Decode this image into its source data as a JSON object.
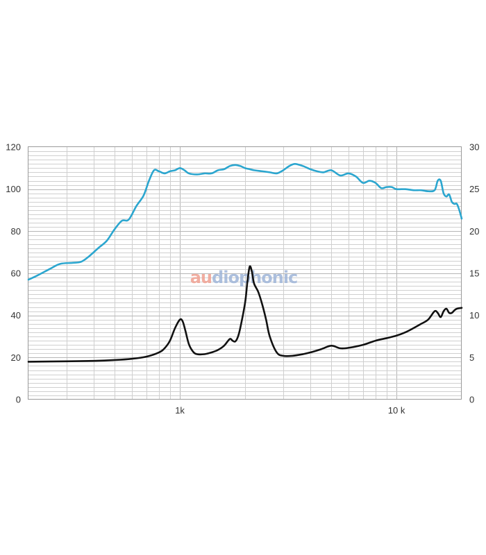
{
  "watermark": {
    "text": "audiophonic"
  },
  "chart_data": {
    "type": "line",
    "x_scale": "log",
    "xlim": [
      200,
      20000
    ],
    "x_tick_values": [
      1000,
      10000
    ],
    "x_tick_labels": [
      "1k",
      "10 k"
    ],
    "ylim": [
      0,
      120
    ],
    "y_ticks": [
      0,
      20,
      40,
      60,
      80,
      100,
      120
    ],
    "y_tick_labels": [
      "0",
      "20",
      "40",
      "60",
      "80",
      "100",
      "120"
    ],
    "y2lim": [
      0,
      30
    ],
    "y2_ticks": [
      0,
      5,
      10,
      15,
      20,
      25,
      30
    ],
    "y2_tick_labels": [
      "0",
      "5",
      "10",
      "15",
      "20",
      "25",
      "30"
    ],
    "grid": true,
    "legend": "none",
    "series": [
      {
        "axis": "left",
        "color": "#2ba6cf",
        "x": [
          200,
          220,
          250,
          280,
          320,
          350,
          380,
          420,
          460,
          500,
          540,
          580,
          630,
          680,
          720,
          760,
          800,
          850,
          900,
          950,
          1000,
          1050,
          1100,
          1200,
          1300,
          1400,
          1500,
          1600,
          1700,
          1800,
          1900,
          2000,
          2100,
          2200,
          2400,
          2600,
          2800,
          3000,
          3200,
          3400,
          3700,
          4000,
          4300,
          4600,
          5000,
          5500,
          6000,
          6500,
          7000,
          7500,
          8000,
          8500,
          9000,
          9500,
          10000,
          11000,
          12000,
          13000,
          14000,
          15000,
          15500,
          16000,
          16500,
          17000,
          17500,
          18000,
          18500,
          19000,
          19500,
          20000
        ],
        "y": [
          57,
          59,
          62,
          64.5,
          65,
          65.5,
          68,
          72,
          75.5,
          81,
          85,
          85.5,
          92,
          97,
          104,
          109,
          108.5,
          107.5,
          108.5,
          109,
          110,
          109,
          107.5,
          107,
          107.5,
          107.5,
          109,
          109.5,
          111,
          111.5,
          111,
          110,
          109.5,
          109,
          108.5,
          108,
          107.5,
          109,
          111,
          112,
          111,
          109.5,
          108.5,
          108,
          109,
          106.5,
          107.5,
          106,
          103,
          104,
          103,
          100.5,
          101,
          101,
          100,
          100,
          99.5,
          99.5,
          99,
          99.5,
          104,
          104,
          98,
          96.5,
          97.5,
          94,
          93,
          93,
          90,
          86
        ]
      },
      {
        "axis": "right",
        "color": "#111111",
        "x": [
          200,
          300,
          400,
          500,
          600,
          700,
          800,
          850,
          900,
          950,
          1000,
          1030,
          1060,
          1100,
          1150,
          1200,
          1300,
          1400,
          1500,
          1600,
          1700,
          1750,
          1800,
          1850,
          1900,
          2000,
          2050,
          2100,
          2150,
          2200,
          2300,
          2400,
          2500,
          2600,
          2800,
          3000,
          3300,
          3700,
          4000,
          4500,
          5000,
          5500,
          6000,
          7000,
          8000,
          9000,
          10000,
          11000,
          12000,
          13000,
          14000,
          15000,
          15500,
          16000,
          16500,
          17000,
          17500,
          18000,
          18500,
          19000,
          20000
        ],
        "y": [
          4.5,
          4.55,
          4.6,
          4.7,
          4.85,
          5.1,
          5.6,
          6.1,
          7,
          8.5,
          9.5,
          9.3,
          8.2,
          6.6,
          5.7,
          5.4,
          5.4,
          5.6,
          5.9,
          6.4,
          7.2,
          7.0,
          6.9,
          7.4,
          8.5,
          11.5,
          14,
          15.8,
          15.2,
          13.8,
          12.8,
          11.3,
          9.5,
          7.5,
          5.6,
          5.2,
          5.2,
          5.4,
          5.6,
          6.0,
          6.4,
          6.1,
          6.15,
          6.5,
          7.0,
          7.3,
          7.6,
          8.0,
          8.5,
          9.0,
          9.5,
          10.5,
          10.3,
          9.8,
          10.5,
          10.8,
          10.3,
          10.3,
          10.6,
          10.8,
          10.9
        ]
      }
    ]
  }
}
